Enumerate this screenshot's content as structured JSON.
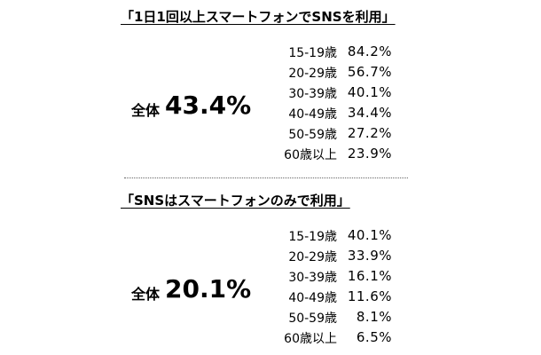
{
  "sections": [
    {
      "title": "「1日1回以上スマートフォンでSNSを利用」",
      "overall_label": "全体",
      "overall_value": "43.4%",
      "rows": [
        {
          "age": "15-19歳",
          "value": "84.2%"
        },
        {
          "age": "20-29歳",
          "value": "56.7%"
        },
        {
          "age": "30-39歳",
          "value": "40.1%"
        },
        {
          "age": "40-49歳",
          "value": "34.4%"
        },
        {
          "age": "50-59歳",
          "value": "27.2%"
        },
        {
          "age": "60歳以上",
          "value": "23.9%"
        }
      ]
    },
    {
      "title": "「SNSはスマートフォンのみで利用」",
      "overall_label": "全体",
      "overall_value": "20.1%",
      "rows": [
        {
          "age": "15-19歳",
          "value": "40.1%"
        },
        {
          "age": "20-29歳",
          "value": "33.9%"
        },
        {
          "age": "30-39歳",
          "value": "16.1%"
        },
        {
          "age": "40-49歳",
          "value": "11.6%"
        },
        {
          "age": "50-59歳",
          "value": "8.1%"
        },
        {
          "age": "60歳以上",
          "value": "6.5%"
        }
      ]
    }
  ]
}
